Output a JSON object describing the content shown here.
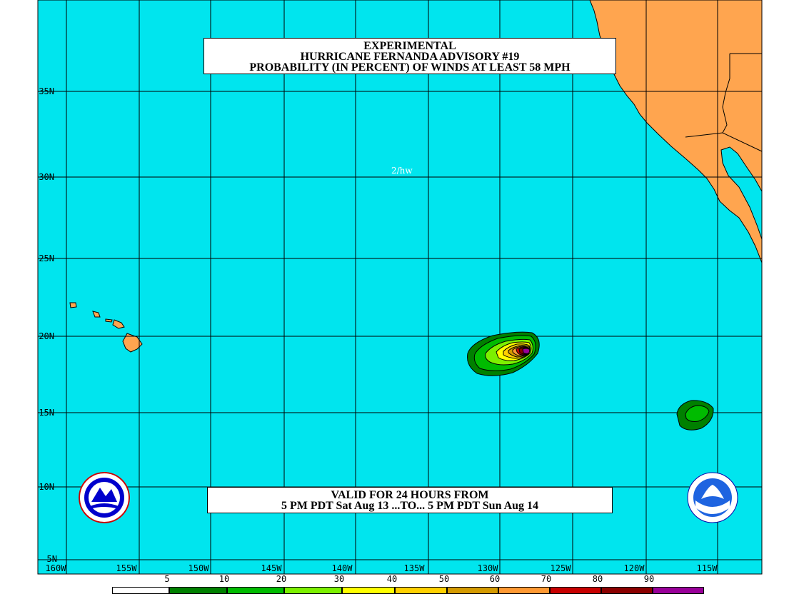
{
  "title": {
    "line1": "EXPERIMENTAL",
    "line2": "HURRICANE FERNANDA ADVISORY #19",
    "line3": "PROBABILITY (IN PERCENT) OF WINDS AT LEAST 58 MPH"
  },
  "valid": {
    "line1": "VALID FOR 24 HOURS FROM",
    "line2": "5 PM PDT Sat Aug 13 ...TO... 5 PM PDT Sun Aug 14"
  },
  "initials": "2/hw",
  "lat_labels": [
    "35N",
    "30N",
    "25N",
    "20N",
    "15N",
    "10N",
    "5N"
  ],
  "lon_labels": [
    "160W",
    "155W",
    "150W",
    "145W",
    "140W",
    "135W",
    "130W",
    "125W",
    "120W",
    "115W"
  ],
  "legend": {
    "labels": [
      "5",
      "10",
      "20",
      "30",
      "40",
      "50",
      "60",
      "70",
      "80",
      "90"
    ],
    "colors": [
      "#ffffff",
      "#008000",
      "#00bb00",
      "#7cf000",
      "#ffff00",
      "#ffd000",
      "#d49a00",
      "#ff9933",
      "#c80000",
      "#8b0000",
      "#990099"
    ]
  },
  "colors": {
    "ocean": "#00e5ee",
    "land": "#ffa54f",
    "grid": "#000000"
  },
  "logos": [
    "nws-logo-icon",
    "noaa-logo-icon"
  ]
}
